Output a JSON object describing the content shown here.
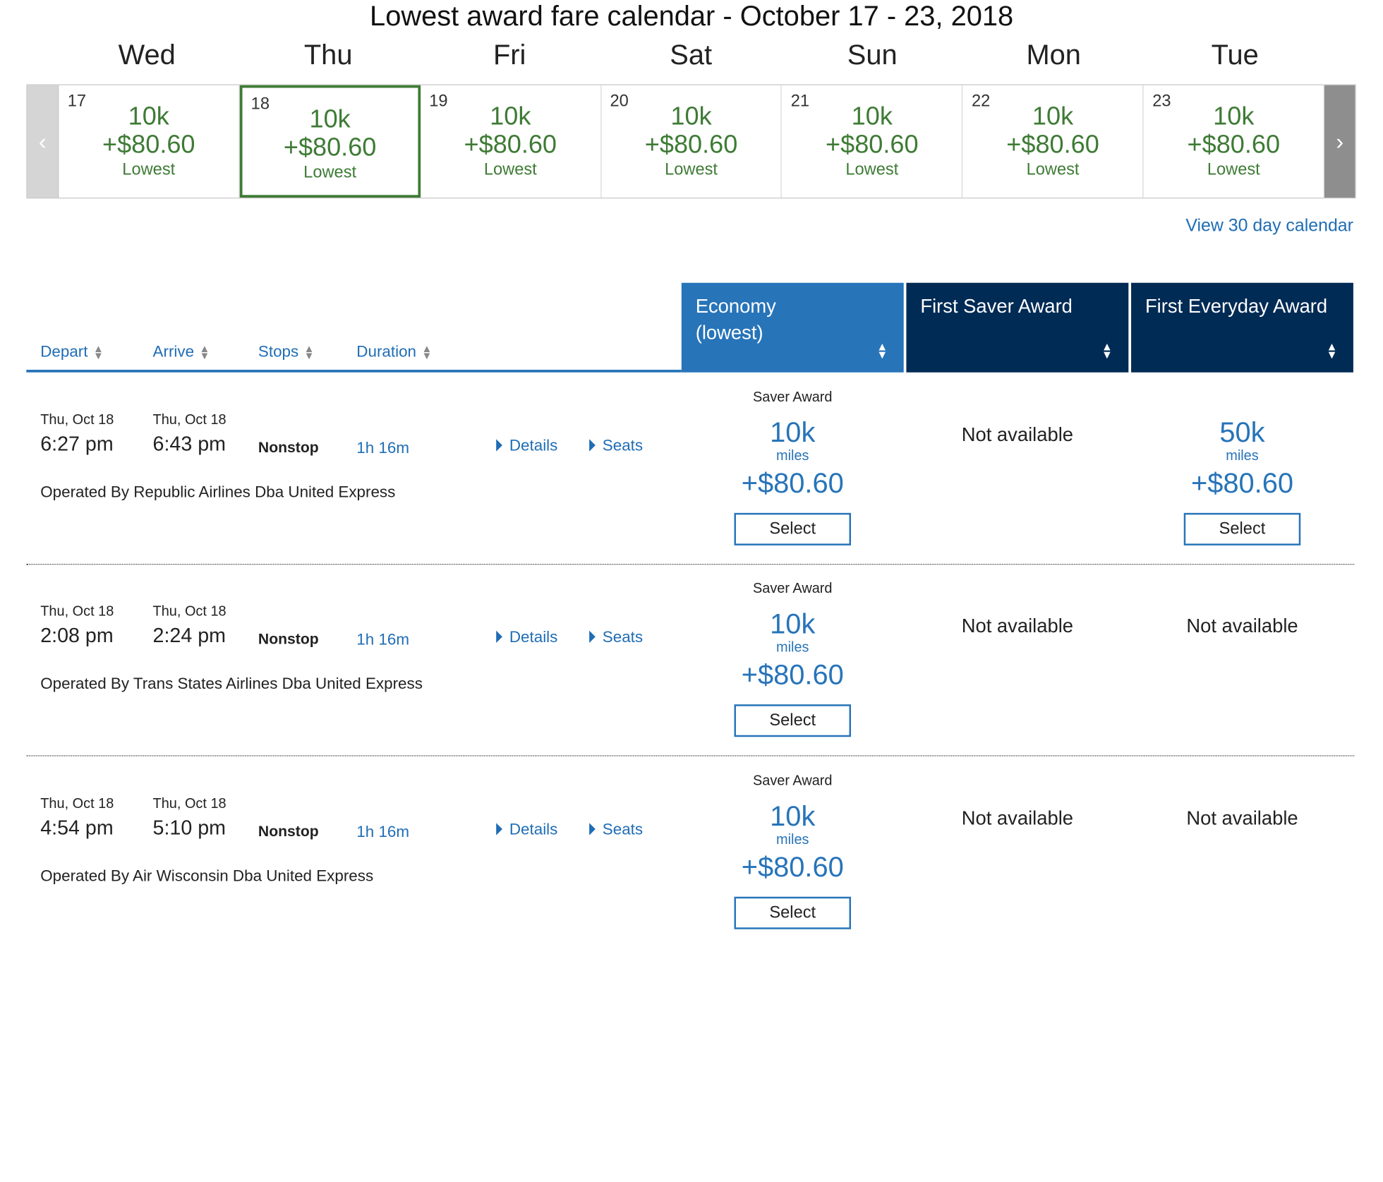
{
  "calendar": {
    "title": "Lowest award fare calendar - October 17 - 23, 2018",
    "day_names": [
      "Wed",
      "Thu",
      "Fri",
      "Sat",
      "Sun",
      "Mon",
      "Tue"
    ],
    "prev_glyph": "‹",
    "next_glyph": "›",
    "days": [
      {
        "date": "17",
        "miles": "10k",
        "fee": "+$80.60",
        "tag": "Lowest"
      },
      {
        "date": "18",
        "miles": "10k",
        "fee": "+$80.60",
        "tag": "Lowest"
      },
      {
        "date": "19",
        "miles": "10k",
        "fee": "+$80.60",
        "tag": "Lowest"
      },
      {
        "date": "20",
        "miles": "10k",
        "fee": "+$80.60",
        "tag": "Lowest"
      },
      {
        "date": "21",
        "miles": "10k",
        "fee": "+$80.60",
        "tag": "Lowest"
      },
      {
        "date": "22",
        "miles": "10k",
        "fee": "+$80.60",
        "tag": "Lowest"
      },
      {
        "date": "23",
        "miles": "10k",
        "fee": "+$80.60",
        "tag": "Lowest"
      }
    ],
    "selected_date": "18",
    "view_30_label": "View 30 day calendar"
  },
  "sort": {
    "depart": "Depart",
    "arrive": "Arrive",
    "stops": "Stops",
    "duration": "Duration",
    "sort_glyph_up": "▲",
    "sort_glyph_down": "▼"
  },
  "fare_headers": {
    "economy_line1": "Economy",
    "economy_line2": "(lowest)",
    "first_saver": "First Saver Award",
    "first_everyday": "First Everyday Award"
  },
  "flights": [
    {
      "depart_date": "Thu, Oct 18",
      "depart_time": "6:27 pm",
      "arrive_date": "Thu, Oct 18",
      "arrive_time": "6:43 pm",
      "stops": "Nonstop",
      "duration": "1h 16m",
      "details_label": "Details",
      "seats_label": "Seats",
      "operated_by": "Operated By Republic Airlines Dba United Express",
      "economy": {
        "label": "Saver Award",
        "miles": "10k",
        "unit": "miles",
        "fee": "+$80.60",
        "select_label": "Select"
      },
      "first_saver": {
        "status": "Not available"
      },
      "first_everyday": {
        "miles": "50k",
        "unit": "miles",
        "fee": "+$80.60",
        "select_label": "Select"
      }
    },
    {
      "depart_date": "Thu, Oct 18",
      "depart_time": "2:08 pm",
      "arrive_date": "Thu, Oct 18",
      "arrive_time": "2:24 pm",
      "stops": "Nonstop",
      "duration": "1h 16m",
      "details_label": "Details",
      "seats_label": "Seats",
      "operated_by": "Operated By Trans States Airlines Dba United Express",
      "economy": {
        "label": "Saver Award",
        "miles": "10k",
        "unit": "miles",
        "fee": "+$80.60",
        "select_label": "Select"
      },
      "first_saver": {
        "status": "Not available"
      },
      "first_everyday": {
        "status": "Not available"
      }
    },
    {
      "depart_date": "Thu, Oct 18",
      "depart_time": "4:54 pm",
      "arrive_date": "Thu, Oct 18",
      "arrive_time": "5:10 pm",
      "stops": "Nonstop",
      "duration": "1h 16m",
      "details_label": "Details",
      "seats_label": "Seats",
      "operated_by": "Operated By Air Wisconsin Dba United Express",
      "economy": {
        "label": "Saver Award",
        "miles": "10k",
        "unit": "miles",
        "fee": "+$80.60",
        "select_label": "Select"
      },
      "first_saver": {
        "status": "Not available"
      },
      "first_everyday": {
        "status": "Not available"
      }
    }
  ]
}
